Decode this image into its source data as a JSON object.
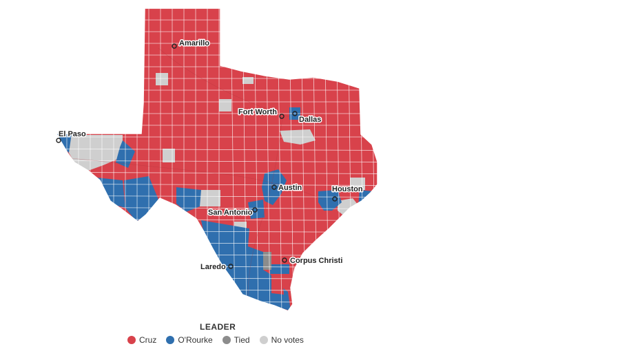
{
  "legend": {
    "title": "LEADER",
    "items": [
      {
        "key": "cruz",
        "label": "Cruz",
        "color": "#d8424b"
      },
      {
        "key": "orourke",
        "label": "O'Rourke",
        "color": "#2f6fae"
      },
      {
        "key": "tied",
        "label": "Tied",
        "color": "#8c8c8c"
      },
      {
        "key": "novotes",
        "label": "No votes",
        "color": "#cfcfcf"
      }
    ]
  },
  "cities": {
    "amarillo": "Amarillo",
    "fort_worth": "Fort Worth",
    "dallas": "Dallas",
    "el_paso": "El Paso",
    "austin": "Austin",
    "houston": "Houston",
    "san_antonio": "San Antonio",
    "laredo": "Laredo",
    "corpus_christi": "Corpus Christi"
  },
  "colors": {
    "county_border": "#ffffff",
    "gulf_water": "#ffffff"
  }
}
